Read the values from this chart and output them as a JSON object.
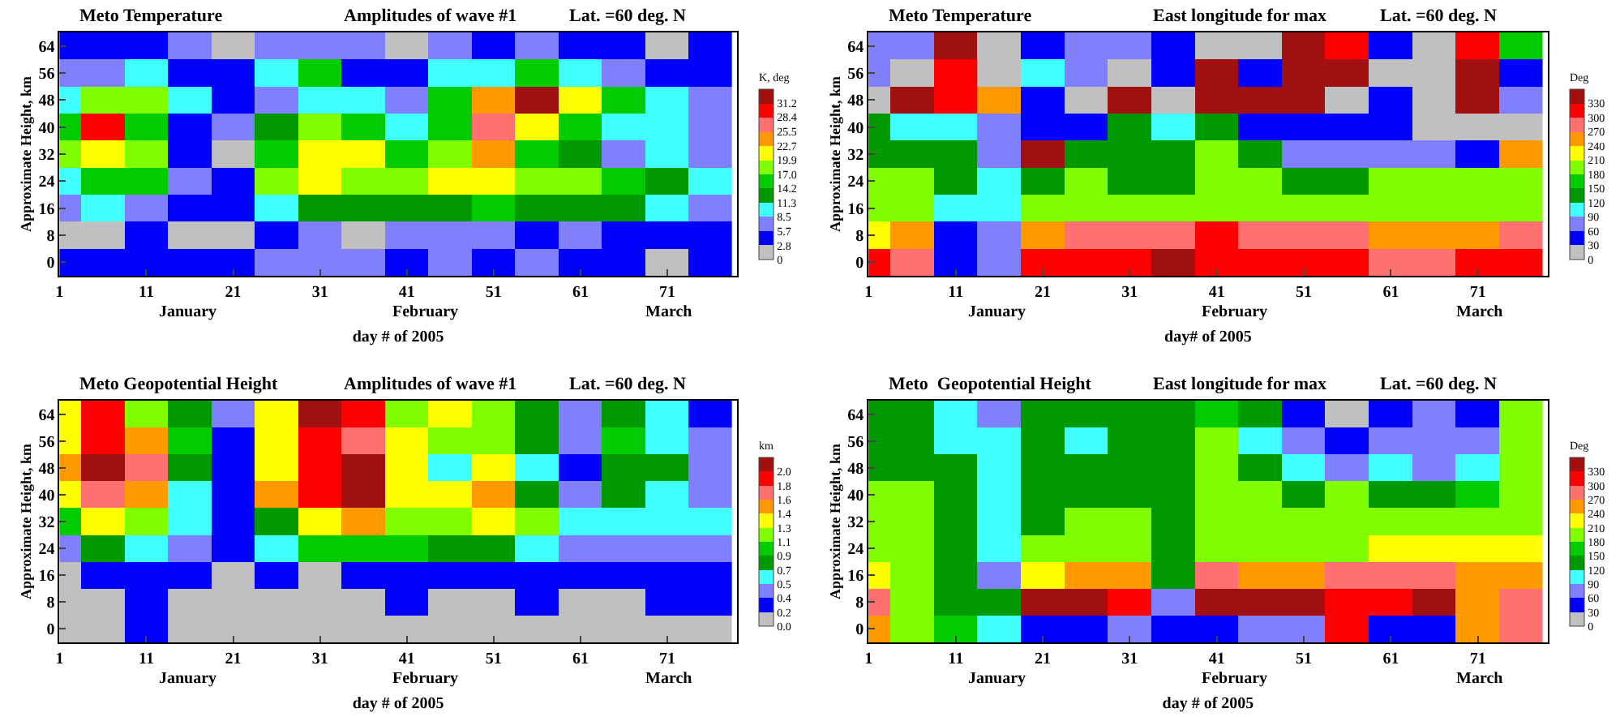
{
  "chart_data": [
    {
      "type": "heatmap",
      "title": "Meto Temperature",
      "subtitle": "Amplitudes of wave #1",
      "annotations": [
        "Lat. =60 deg. N",
        "January",
        "February",
        "March"
      ],
      "xlabel": "day # of 2005",
      "ylabel": "Approximate Height, km",
      "clabel": "K, deg",
      "x": [
        1,
        6,
        11,
        16,
        21,
        26,
        31,
        36,
        41,
        46,
        51,
        56,
        61,
        66,
        71,
        76
      ],
      "xlim": [
        1,
        79
      ],
      "xticks": [
        1,
        11,
        21,
        31,
        41,
        51,
        61,
        71
      ],
      "y_categories": [
        "64",
        "56",
        "48",
        "40",
        "32",
        "24",
        "16",
        "8",
        "0"
      ],
      "cells": [
        [
          4.2,
          4.2,
          4.2,
          7.1,
          1.4,
          7.1,
          7.1,
          7.1,
          1.4,
          7.1,
          4.2,
          7.1,
          4.2,
          4.2,
          1.4,
          4.2
        ],
        [
          7.1,
          7.1,
          9.9,
          4.2,
          4.2,
          9.9,
          15.6,
          4.2,
          4.2,
          9.9,
          9.9,
          15.6,
          9.9,
          7.1,
          4.2,
          4.2
        ],
        [
          9.9,
          18.4,
          18.4,
          9.9,
          4.2,
          7.1,
          9.9,
          9.9,
          7.1,
          15.6,
          24.1,
          32.6,
          21.3,
          15.6,
          9.9,
          7.1
        ],
        [
          15.6,
          29.8,
          15.6,
          4.2,
          7.1,
          12.7,
          18.4,
          15.6,
          9.9,
          15.6,
          27.0,
          21.3,
          15.6,
          9.9,
          9.9,
          7.1
        ],
        [
          18.4,
          21.3,
          18.4,
          4.2,
          1.4,
          15.6,
          21.3,
          21.3,
          15.6,
          18.4,
          24.1,
          15.6,
          12.7,
          7.1,
          9.9,
          7.1
        ],
        [
          9.9,
          15.6,
          15.6,
          7.1,
          4.2,
          18.4,
          21.3,
          18.4,
          18.4,
          21.3,
          21.3,
          18.4,
          18.4,
          15.6,
          12.7,
          9.9
        ],
        [
          7.1,
          9.9,
          7.1,
          4.2,
          4.2,
          9.9,
          12.7,
          12.7,
          12.7,
          12.7,
          15.6,
          12.7,
          12.7,
          12.7,
          9.9,
          7.1
        ],
        [
          1.4,
          1.4,
          4.2,
          1.4,
          1.4,
          4.2,
          7.1,
          1.4,
          7.1,
          7.1,
          7.1,
          4.2,
          7.1,
          4.2,
          4.2,
          4.2
        ],
        [
          4.2,
          4.2,
          4.2,
          4.2,
          4.2,
          7.1,
          7.1,
          7.1,
          4.2,
          7.1,
          4.2,
          7.1,
          4.2,
          4.2,
          1.4,
          4.2
        ]
      ],
      "clim": [
        0,
        34
      ],
      "cticks": [
        0,
        2.8,
        5.7,
        8.5,
        11.3,
        14.2,
        {
          "value": 17,
          "label": "17.0"
        },
        19.9,
        22.7,
        25.5,
        28.4,
        31.2
      ],
      "colors": [
        "#c0c0c0",
        "#0000ff",
        "#8080ff",
        "#40ffff",
        "#009900",
        "#00cc00",
        "#80ff00",
        "#ffff00",
        "#ff9900",
        "#ff7070",
        "#ff0000",
        "#a01010"
      ]
    },
    {
      "type": "heatmap",
      "title": "Meto Temperature",
      "subtitle": "East longitude for max",
      "annotations": [
        "Lat. =60 deg. N",
        "January",
        "February",
        "March"
      ],
      "xlabel": "day# of 2005",
      "ylabel": "Approximate Height, km",
      "clabel": "Deg",
      "x": [
        1,
        6,
        11,
        16,
        21,
        26,
        31,
        36,
        41,
        46,
        51,
        56,
        61,
        66,
        71,
        76
      ],
      "xlim": [
        1,
        79
      ],
      "xticks": [
        1,
        11,
        21,
        31,
        41,
        51,
        61,
        71
      ],
      "y_categories": [
        "64",
        "56",
        "48",
        "40",
        "32",
        "24",
        "16",
        "8",
        "0"
      ],
      "cells": [
        [
          75,
          75,
          345,
          15,
          45,
          75,
          75,
          45,
          15,
          15,
          345,
          315,
          45,
          15,
          315,
          165
        ],
        [
          75,
          15,
          315,
          15,
          105,
          75,
          15,
          45,
          345,
          45,
          345,
          345,
          15,
          15,
          345,
          45
        ],
        [
          15,
          345,
          315,
          255,
          45,
          15,
          345,
          15,
          345,
          345,
          345,
          15,
          45,
          15,
          345,
          75
        ],
        [
          135,
          105,
          105,
          75,
          45,
          45,
          135,
          105,
          135,
          45,
          45,
          45,
          45,
          15,
          15,
          15
        ],
        [
          135,
          135,
          135,
          75,
          345,
          135,
          135,
          135,
          195,
          135,
          75,
          75,
          75,
          75,
          45,
          255
        ],
        [
          195,
          195,
          135,
          105,
          135,
          195,
          135,
          135,
          195,
          195,
          135,
          135,
          195,
          195,
          195,
          195
        ],
        [
          195,
          195,
          105,
          105,
          195,
          195,
          195,
          195,
          195,
          195,
          195,
          195,
          195,
          195,
          195,
          195
        ],
        [
          225,
          255,
          45,
          75,
          255,
          285,
          285,
          285,
          315,
          285,
          285,
          285,
          255,
          255,
          255,
          285
        ],
        [
          315,
          285,
          45,
          75,
          315,
          315,
          315,
          345,
          315,
          315,
          315,
          315,
          285,
          285,
          315,
          315
        ]
      ],
      "clim": [
        0,
        360
      ],
      "cticks": [
        0,
        30,
        60,
        90,
        120,
        150,
        180,
        210,
        240,
        270,
        300,
        330
      ],
      "colors": [
        "#c0c0c0",
        "#0000ff",
        "#8080ff",
        "#40ffff",
        "#009900",
        "#00cc00",
        "#80ff00",
        "#ffff00",
        "#ff9900",
        "#ff7070",
        "#ff0000",
        "#a01010"
      ]
    },
    {
      "type": "heatmap",
      "title": "Meto Geopotential Height",
      "subtitle": "Amplitudes of wave #1",
      "annotations": [
        "Lat. =60 deg. N",
        "January",
        "February",
        "March"
      ],
      "xlabel": "day # of 2005",
      "ylabel": "Approximate Height, km",
      "clabel": "km",
      "x": [
        1,
        6,
        11,
        16,
        21,
        26,
        31,
        36,
        41,
        46,
        51,
        56,
        61,
        66,
        71,
        76
      ],
      "xlim": [
        1,
        79
      ],
      "xticks": [
        1,
        11,
        21,
        31,
        41,
        51,
        61,
        71
      ],
      "y_categories": [
        "64",
        "56",
        "48",
        "40",
        "32",
        "24",
        "16",
        "8",
        "0"
      ],
      "cells": [
        [
          1.35,
          1.89,
          1.17,
          0.81,
          0.45,
          1.35,
          2.07,
          1.89,
          1.17,
          1.35,
          1.17,
          0.81,
          0.45,
          0.81,
          0.63,
          0.27
        ],
        [
          1.35,
          1.89,
          1.53,
          0.99,
          0.27,
          1.35,
          1.89,
          1.71,
          1.35,
          1.17,
          1.17,
          0.81,
          0.45,
          0.99,
          0.63,
          0.45
        ],
        [
          1.53,
          2.07,
          1.71,
          0.81,
          0.27,
          1.35,
          1.89,
          2.07,
          1.35,
          0.63,
          1.35,
          0.63,
          0.27,
          0.81,
          0.81,
          0.45
        ],
        [
          1.35,
          1.71,
          1.53,
          0.63,
          0.27,
          1.53,
          1.89,
          2.07,
          1.35,
          1.35,
          1.53,
          0.81,
          0.45,
          0.81,
          0.63,
          0.45
        ],
        [
          0.99,
          1.35,
          1.17,
          0.63,
          0.27,
          0.81,
          1.35,
          1.53,
          1.17,
          1.17,
          1.35,
          1.17,
          0.63,
          0.63,
          0.63,
          0.63
        ],
        [
          0.45,
          0.81,
          0.63,
          0.45,
          0.27,
          0.63,
          0.99,
          0.99,
          0.99,
          0.81,
          0.81,
          0.63,
          0.45,
          0.45,
          0.45,
          0.45
        ],
        [
          0.09,
          0.27,
          0.27,
          0.27,
          0.09,
          0.27,
          0.09,
          0.27,
          0.27,
          0.27,
          0.27,
          0.27,
          0.27,
          0.27,
          0.27,
          0.27
        ],
        [
          0.09,
          0.09,
          0.27,
          0.09,
          0.09,
          0.09,
          0.09,
          0.09,
          0.27,
          0.09,
          0.09,
          0.27,
          0.09,
          0.09,
          0.27,
          0.27
        ],
        [
          0.09,
          0.09,
          0.27,
          0.09,
          0.09,
          0.09,
          0.09,
          0.09,
          0.09,
          0.09,
          0.09,
          0.09,
          0.09,
          0.09,
          0.09,
          0.09
        ]
      ],
      "clim": [
        0,
        2.16
      ],
      "cticks": [
        {
          "value": 0,
          "label": "0.0"
        },
        {
          "value": 0.18,
          "label": "0.2"
        },
        {
          "value": 0.36,
          "label": "0.4"
        },
        {
          "value": 0.54,
          "label": "0.5"
        },
        {
          "value": 0.72,
          "label": "0.7"
        },
        0.9,
        {
          "value": 1.08,
          "label": "1.1"
        },
        {
          "value": 1.26,
          "label": "1.3"
        },
        {
          "value": 1.44,
          "label": "1.4"
        },
        {
          "value": 1.62,
          "label": "1.6"
        },
        1.8,
        {
          "value": 1.98,
          "label": "2.0"
        }
      ],
      "colors": [
        "#c0c0c0",
        "#0000ff",
        "#8080ff",
        "#40ffff",
        "#009900",
        "#00cc00",
        "#80ff00",
        "#ffff00",
        "#ff9900",
        "#ff7070",
        "#ff0000",
        "#a01010"
      ]
    },
    {
      "type": "heatmap",
      "title": "Meto  Geopotential Height",
      "subtitle": "East longitude for max",
      "annotations": [
        "Lat. =60 deg. N",
        "January",
        "February",
        "March"
      ],
      "xlabel": "day # of 2005",
      "ylabel": "Approximate Height, km",
      "clabel": "Deg",
      "x": [
        1,
        6,
        11,
        16,
        21,
        26,
        31,
        36,
        41,
        46,
        51,
        56,
        61,
        66,
        71,
        76
      ],
      "xlim": [
        1,
        79
      ],
      "xticks": [
        1,
        11,
        21,
        31,
        41,
        51,
        61,
        71
      ],
      "y_categories": [
        "64",
        "56",
        "48",
        "40",
        "32",
        "24",
        "16",
        "8",
        "0"
      ],
      "cells": [
        [
          135,
          135,
          105,
          75,
          135,
          135,
          135,
          135,
          165,
          135,
          45,
          15,
          45,
          75,
          45,
          195
        ],
        [
          135,
          135,
          105,
          105,
          135,
          105,
          135,
          135,
          195,
          105,
          75,
          45,
          75,
          75,
          75,
          195
        ],
        [
          135,
          135,
          135,
          105,
          135,
          135,
          135,
          135,
          195,
          135,
          105,
          75,
          105,
          75,
          105,
          195
        ],
        [
          195,
          195,
          135,
          105,
          135,
          135,
          135,
          135,
          195,
          195,
          135,
          195,
          135,
          135,
          165,
          195
        ],
        [
          195,
          195,
          135,
          105,
          135,
          195,
          195,
          135,
          195,
          195,
          195,
          195,
          195,
          195,
          195,
          195
        ],
        [
          195,
          195,
          135,
          105,
          195,
          195,
          195,
          135,
          195,
          195,
          195,
          195,
          225,
          225,
          225,
          225
        ],
        [
          225,
          195,
          135,
          75,
          225,
          255,
          255,
          135,
          285,
          255,
          255,
          285,
          285,
          285,
          255,
          255
        ],
        [
          285,
          195,
          135,
          135,
          345,
          345,
          315,
          75,
          345,
          345,
          345,
          315,
          315,
          345,
          255,
          285
        ],
        [
          255,
          195,
          165,
          105,
          45,
          45,
          75,
          45,
          45,
          75,
          75,
          315,
          45,
          45,
          255,
          285
        ]
      ],
      "clim": [
        0,
        360
      ],
      "cticks": [
        0,
        30,
        60,
        90,
        120,
        150,
        180,
        210,
        240,
        270,
        300,
        330
      ],
      "colors": [
        "#c0c0c0",
        "#0000ff",
        "#8080ff",
        "#40ffff",
        "#009900",
        "#00cc00",
        "#80ff00",
        "#ffff00",
        "#ff9900",
        "#ff7070",
        "#ff0000",
        "#a01010"
      ]
    }
  ]
}
